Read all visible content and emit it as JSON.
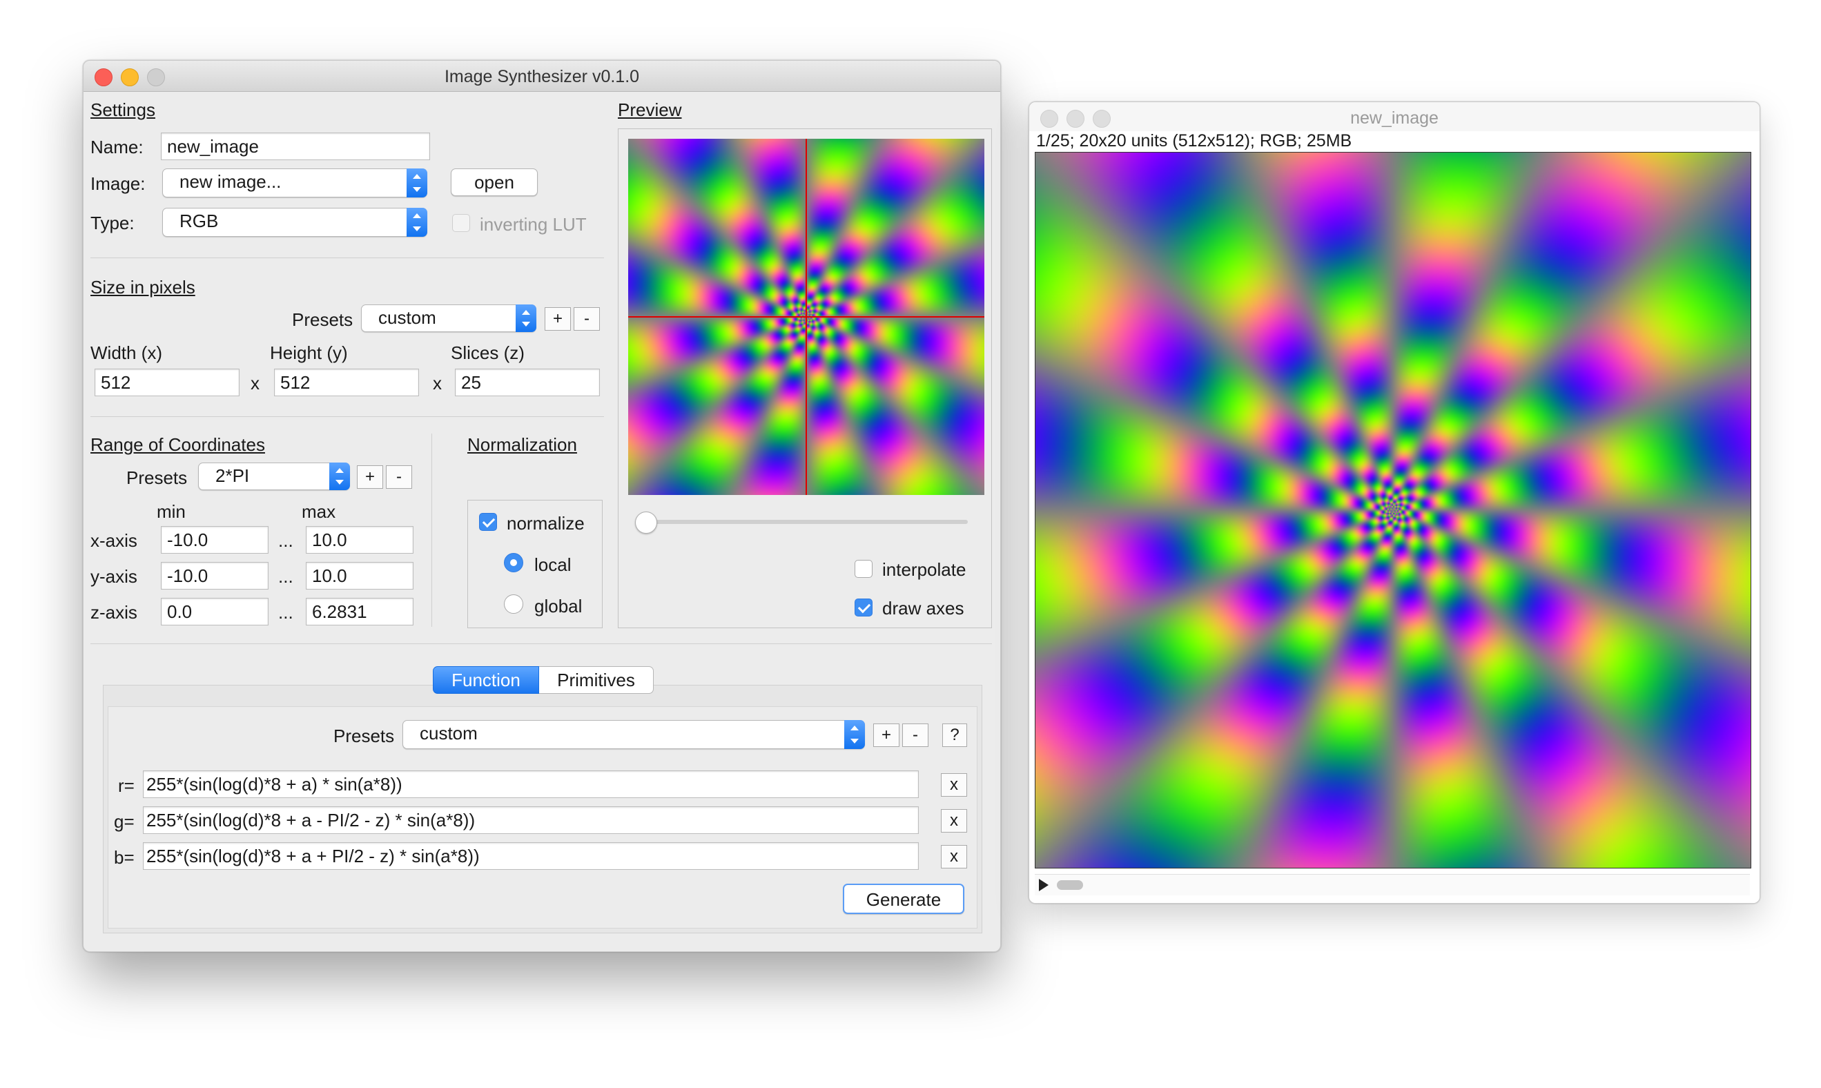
{
  "main_window": {
    "title": "Image Synthesizer v0.1.0",
    "settings": {
      "heading": "Settings",
      "name_label": "Name:",
      "name_value": "new_image",
      "image_label": "Image:",
      "image_value": "new image...",
      "open_label": "open",
      "type_label": "Type:",
      "type_value": "RGB",
      "inverting_lut_label": "inverting LUT"
    },
    "size": {
      "heading": "Size in pixels",
      "presets_label": "Presets",
      "presets_value": "custom",
      "plus": "+",
      "minus": "-",
      "width_label": "Width (x)",
      "height_label": "Height (y)",
      "slices_label": "Slices (z)",
      "width_value": "512",
      "height_value": "512",
      "slices_value": "25",
      "times": "x"
    },
    "range": {
      "heading": "Range of Coordinates",
      "presets_label": "Presets",
      "presets_value": "2*PI",
      "plus": "+",
      "minus": "-",
      "min_label": "min",
      "max_label": "max",
      "dots": "...",
      "x_label": "x-axis",
      "y_label": "y-axis",
      "z_label": "z-axis",
      "x_min": "-10.0",
      "x_max": "10.0",
      "y_min": "-10.0",
      "y_max": "10.0",
      "z_min": "0.0",
      "z_max": "6.2831"
    },
    "normalization": {
      "heading": "Normalization",
      "normalize_label": "normalize",
      "local_label": "local",
      "global_label": "global",
      "normalize_checked": true,
      "mode": "local"
    },
    "preview": {
      "heading": "Preview",
      "slider_value": 0,
      "interpolate_label": "interpolate",
      "interpolate_checked": false,
      "draw_axes_label": "draw axes",
      "draw_axes_checked": true,
      "axes_color": "#e00000"
    },
    "function_tabs": {
      "tab_function": "Function",
      "tab_primitives": "Primitives",
      "presets_label": "Presets",
      "presets_value": "custom",
      "plus": "+",
      "minus": "-",
      "help": "?",
      "r_label": "r=",
      "r_value": "255*(sin(log(d)*8 + a) * sin(a*8))",
      "g_label": "g=",
      "g_value": "255*(sin(log(d)*8 + a - PI/2 - z) * sin(a*8))",
      "b_label": "b=",
      "b_value": "255*(sin(log(d)*8 + a + PI/2 - z) * sin(a*8))",
      "clear": "x",
      "generate_label": "Generate"
    }
  },
  "image_window": {
    "title": "new_image",
    "info": "1/25; 20x20 units (512x512); RGB; 25MB",
    "play_icon": "play-icon"
  },
  "colors": {
    "accent": "#1a76f0",
    "window_bg": "#ececec"
  }
}
